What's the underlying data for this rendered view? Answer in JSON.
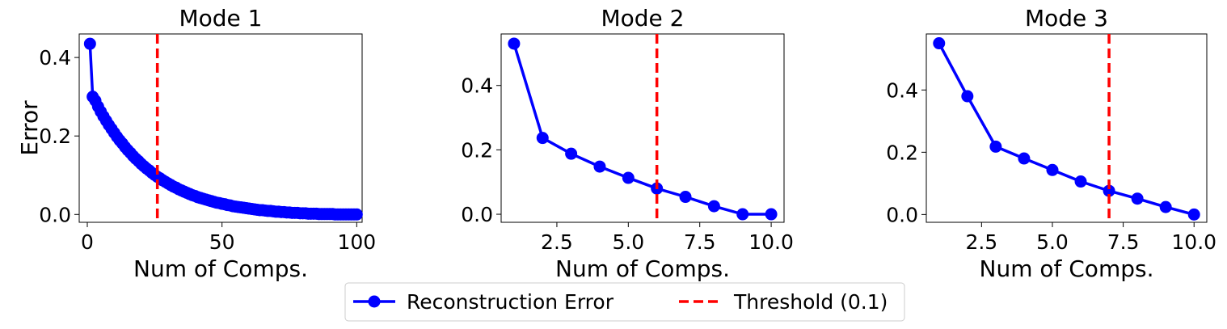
{
  "colors": {
    "series": "#0000ff",
    "threshold": "#ff0000"
  },
  "legend": {
    "placement": "bottom-center",
    "entries": [
      {
        "label": "Reconstruction Error",
        "style": "line-with-markers",
        "color": "#0000ff"
      },
      {
        "label": "Threshold (0.1)",
        "style": "dashed",
        "color": "#ff0000"
      }
    ]
  },
  "chart_data": [
    {
      "type": "line",
      "title": "Mode 1",
      "xlabel": "Num of Comps.",
      "ylabel": "Error",
      "xlim": [
        -3,
        102
      ],
      "ylim": [
        -0.02,
        0.46
      ],
      "xticks": [
        0,
        50,
        100
      ],
      "xtick_labels": [
        "0",
        "50",
        "100"
      ],
      "yticks": [
        0.0,
        0.2,
        0.4
      ],
      "ytick_labels": [
        "0.0",
        "0.2",
        "0.4"
      ],
      "threshold_x": 26,
      "series": [
        {
          "name": "Reconstruction Error",
          "x": [
            1,
            2,
            3,
            4,
            5,
            6,
            7,
            8,
            9,
            10,
            11,
            12,
            13,
            14,
            15,
            16,
            17,
            18,
            19,
            20,
            21,
            22,
            23,
            24,
            25,
            26,
            27,
            28,
            29,
            30,
            31,
            32,
            33,
            34,
            35,
            36,
            37,
            38,
            39,
            40,
            41,
            42,
            43,
            44,
            45,
            46,
            47,
            48,
            49,
            50,
            51,
            52,
            53,
            54,
            55,
            56,
            57,
            58,
            59,
            60,
            61,
            62,
            63,
            64,
            65,
            66,
            67,
            68,
            69,
            70,
            71,
            72,
            73,
            74,
            75,
            76,
            77,
            78,
            79,
            80,
            81,
            82,
            83,
            84,
            85,
            86,
            87,
            88,
            89,
            90,
            91,
            92,
            93,
            94,
            95,
            96,
            97,
            98,
            99,
            100
          ],
          "y": [
            0.435,
            0.3,
            0.29,
            0.275,
            0.262,
            0.25,
            0.239,
            0.228,
            0.218,
            0.208,
            0.198,
            0.189,
            0.181,
            0.172,
            0.164,
            0.157,
            0.149,
            0.142,
            0.136,
            0.129,
            0.123,
            0.117,
            0.112,
            0.106,
            0.101,
            0.096,
            0.092,
            0.087,
            0.083,
            0.079,
            0.075,
            0.071,
            0.068,
            0.064,
            0.061,
            0.058,
            0.055,
            0.052,
            0.049,
            0.047,
            0.044,
            0.042,
            0.04,
            0.038,
            0.036,
            0.034,
            0.032,
            0.03,
            0.029,
            0.027,
            0.026,
            0.024,
            0.023,
            0.021,
            0.02,
            0.019,
            0.018,
            0.017,
            0.016,
            0.015,
            0.014,
            0.013,
            0.012,
            0.011,
            0.011,
            0.01,
            0.009,
            0.009,
            0.008,
            0.007,
            0.007,
            0.006,
            0.006,
            0.005,
            0.005,
            0.004,
            0.004,
            0.004,
            0.003,
            0.003,
            0.003,
            0.002,
            0.002,
            0.002,
            0.002,
            0.001,
            0.001,
            0.001,
            0.001,
            0.001,
            0.001,
            0.0,
            0.0,
            0.0,
            0.0,
            0.0,
            0.0,
            0.0,
            0.0,
            0.0
          ]
        }
      ]
    },
    {
      "type": "line",
      "title": "Mode 2",
      "xlabel": "Num of Comps.",
      "ylabel": "",
      "xlim": [
        0.55,
        10.45
      ],
      "ylim": [
        -0.025,
        0.56
      ],
      "xticks": [
        2.5,
        5.0,
        7.5,
        10.0
      ],
      "xtick_labels": [
        "2.5",
        "5.0",
        "7.5",
        "10.0"
      ],
      "yticks": [
        0.0,
        0.2,
        0.4
      ],
      "ytick_labels": [
        "0.0",
        "0.2",
        "0.4"
      ],
      "threshold_x": 6,
      "series": [
        {
          "name": "Reconstruction Error",
          "x": [
            1,
            2,
            3,
            4,
            5,
            6,
            7,
            8,
            9,
            10
          ],
          "y": [
            0.53,
            0.237,
            0.188,
            0.148,
            0.113,
            0.08,
            0.054,
            0.025,
            0.0,
            0.0
          ]
        }
      ]
    },
    {
      "type": "line",
      "title": "Mode 3",
      "xlabel": "Num of Comps.",
      "ylabel": "",
      "xlim": [
        0.55,
        10.45
      ],
      "ylim": [
        -0.025,
        0.58
      ],
      "xticks": [
        2.5,
        5.0,
        7.5,
        10.0
      ],
      "xtick_labels": [
        "2.5",
        "5.0",
        "7.5",
        "10.0"
      ],
      "yticks": [
        0.0,
        0.2,
        0.4
      ],
      "ytick_labels": [
        "0.0",
        "0.2",
        "0.4"
      ],
      "threshold_x": 7,
      "series": [
        {
          "name": "Reconstruction Error",
          "x": [
            1,
            2,
            3,
            4,
            5,
            6,
            7,
            8,
            9,
            10
          ],
          "y": [
            0.55,
            0.38,
            0.218,
            0.18,
            0.143,
            0.106,
            0.076,
            0.051,
            0.024,
            0.0
          ]
        }
      ]
    }
  ]
}
